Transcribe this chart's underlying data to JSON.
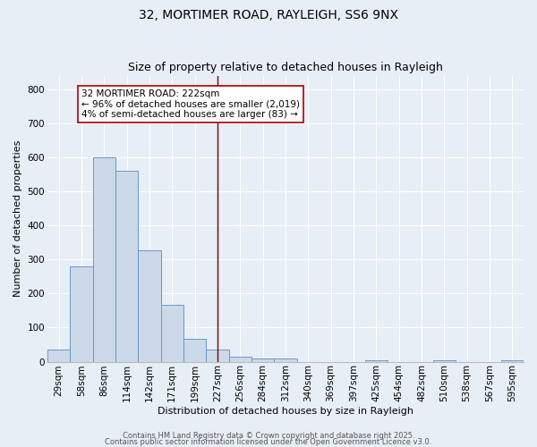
{
  "title": "32, MORTIMER ROAD, RAYLEIGH, SS6 9NX",
  "subtitle": "Size of property relative to detached houses in Rayleigh",
  "xlabel": "Distribution of detached houses by size in Rayleigh",
  "ylabel": "Number of detached properties",
  "categories": [
    "29sqm",
    "58sqm",
    "86sqm",
    "114sqm",
    "142sqm",
    "171sqm",
    "199sqm",
    "227sqm",
    "256sqm",
    "284sqm",
    "312sqm",
    "340sqm",
    "369sqm",
    "397sqm",
    "425sqm",
    "454sqm",
    "482sqm",
    "510sqm",
    "538sqm",
    "567sqm",
    "595sqm"
  ],
  "values": [
    35,
    280,
    600,
    560,
    328,
    168,
    68,
    35,
    15,
    10,
    8,
    0,
    0,
    0,
    5,
    0,
    0,
    5,
    0,
    0,
    5
  ],
  "bar_color": "#ccd9e8",
  "bar_edge_color": "#6699cc",
  "background_color": "#e8eef5",
  "grid_color": "#ffffff",
  "vline_x_index": 7,
  "vline_color": "#7a0000",
  "annotation_text": "32 MORTIMER ROAD: 222sqm\n← 96% of detached houses are smaller (2,019)\n4% of semi-detached houses are larger (83) →",
  "annotation_box_facecolor": "#ffffff",
  "annotation_box_edgecolor": "#aa0000",
  "ylim": [
    0,
    840
  ],
  "yticks": [
    0,
    100,
    200,
    300,
    400,
    500,
    600,
    700,
    800
  ],
  "title_fontsize": 10,
  "subtitle_fontsize": 9,
  "axis_label_fontsize": 8,
  "tick_fontsize": 7.5,
  "annotation_fontsize": 7.5,
  "footer_fontsize": 6,
  "footer_text1": "Contains HM Land Registry data © Crown copyright and database right 2025.",
  "footer_text2": "Contains public sector information licensed under the Open Government Licence v3.0."
}
